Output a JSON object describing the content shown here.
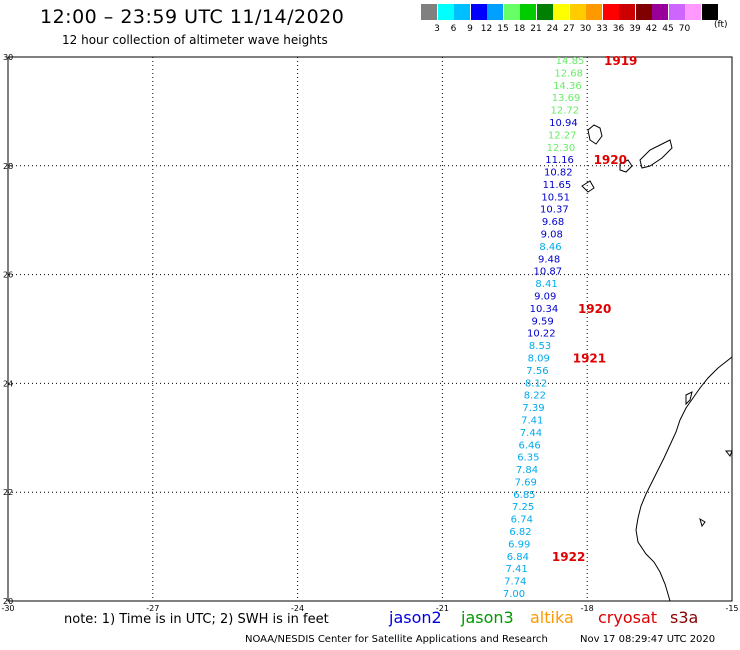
{
  "header": {
    "title": "12:00 – 23:59 UTC 11/14/2020",
    "subtitle": "12 hour collection of altimeter wave heights"
  },
  "colorbar": {
    "swatches": [
      "#808080",
      "#00ffff",
      "#00bfff",
      "#0000ff",
      "#00a0ff",
      "#66ff66",
      "#00cc00",
      "#008000",
      "#ffff00",
      "#ffcc00",
      "#ff9900",
      "#ff0000",
      "#cc0000",
      "#800000",
      "#990099",
      "#cc66ff",
      "#ff99ff",
      "#000000"
    ],
    "labels": [
      "3",
      "6",
      "9",
      "12",
      "15",
      "18",
      "21",
      "24",
      "27",
      "30",
      "33",
      "36",
      "39",
      "42",
      "45",
      "70"
    ],
    "units": "(ft)"
  },
  "axes": {
    "lat_labels": [
      "30",
      "28",
      "26",
      "24",
      "22",
      "20"
    ],
    "lon_labels": [
      "-30",
      "-27",
      "-24",
      "-21",
      "-18",
      "-15"
    ]
  },
  "orbits": [
    {
      "label": "1919",
      "color": "#e00000"
    },
    {
      "label": "1920",
      "color": "#e00000"
    },
    {
      "label": "1920",
      "color": "#e00000"
    },
    {
      "label": "1921",
      "color": "#e00000"
    },
    {
      "label": "1922",
      "color": "#e00000"
    }
  ],
  "wave_heights": [
    {
      "value": "14.85",
      "color": "#66ee66"
    },
    {
      "value": "12.68",
      "color": "#66ee66"
    },
    {
      "value": "14.36",
      "color": "#66ee66"
    },
    {
      "value": "13.69",
      "color": "#66ee66"
    },
    {
      "value": "12.72",
      "color": "#66ee66"
    },
    {
      "value": "10.94",
      "color": "#0000cc"
    },
    {
      "value": "12.27",
      "color": "#66ee66"
    },
    {
      "value": "12.30",
      "color": "#66ee66"
    },
    {
      "value": "11.16",
      "color": "#0000cc"
    },
    {
      "value": "10.82",
      "color": "#0000cc"
    },
    {
      "value": "11.65",
      "color": "#0000cc"
    },
    {
      "value": "10.51",
      "color": "#0000cc"
    },
    {
      "value": "10.37",
      "color": "#0000cc"
    },
    {
      "value": "9.68",
      "color": "#0000cc"
    },
    {
      "value": "9.08",
      "color": "#0000cc"
    },
    {
      "value": "8.46",
      "color": "#00aaee"
    },
    {
      "value": "9.48",
      "color": "#0000cc"
    },
    {
      "value": "10.87",
      "color": "#0000cc"
    },
    {
      "value": "8.41",
      "color": "#00aaee"
    },
    {
      "value": "9.09",
      "color": "#0000cc"
    },
    {
      "value": "10.34",
      "color": "#0000cc"
    },
    {
      "value": "9.59",
      "color": "#0000cc"
    },
    {
      "value": "10.22",
      "color": "#0000cc"
    },
    {
      "value": "8.53",
      "color": "#00aaee"
    },
    {
      "value": "8.09",
      "color": "#00aaee"
    },
    {
      "value": "7.56",
      "color": "#00aaee"
    },
    {
      "value": "8.12",
      "color": "#00aaee"
    },
    {
      "value": "8.22",
      "color": "#00aaee"
    },
    {
      "value": "7.39",
      "color": "#00aaee"
    },
    {
      "value": "7.41",
      "color": "#00aaee"
    },
    {
      "value": "7.44",
      "color": "#00aaee"
    },
    {
      "value": "6.46",
      "color": "#00aaee"
    },
    {
      "value": "6.35",
      "color": "#00aaee"
    },
    {
      "value": "7.84",
      "color": "#00aaee"
    },
    {
      "value": "7.69",
      "color": "#00aaee"
    },
    {
      "value": "6.85",
      "color": "#00aaee"
    },
    {
      "value": "7.25",
      "color": "#00aaee"
    },
    {
      "value": "6.74",
      "color": "#00aaee"
    },
    {
      "value": "6.82",
      "color": "#00aaee"
    },
    {
      "value": "6.99",
      "color": "#00aaee"
    },
    {
      "value": "6.84",
      "color": "#00aaee"
    },
    {
      "value": "7.41",
      "color": "#00aaee"
    },
    {
      "value": "7.74",
      "color": "#00aaee"
    },
    {
      "value": "7.00",
      "color": "#00aaee"
    }
  ],
  "footer": {
    "note": "note: 1) Time is in UTC; 2) SWH is in feet",
    "satellites": [
      {
        "name": "jason2",
        "color": "#0000dd"
      },
      {
        "name": "jason3",
        "color": "#009900"
      },
      {
        "name": "altika",
        "color": "#ff9900"
      },
      {
        "name": "cryosat",
        "color": "#dd0000"
      },
      {
        "name": "s3a",
        "color": "#880000"
      }
    ],
    "credit": "NOAA/NESDIS Center for Satellite Applications and Research",
    "timestamp": "Nov 17 08:29:47 UTC 2020"
  }
}
